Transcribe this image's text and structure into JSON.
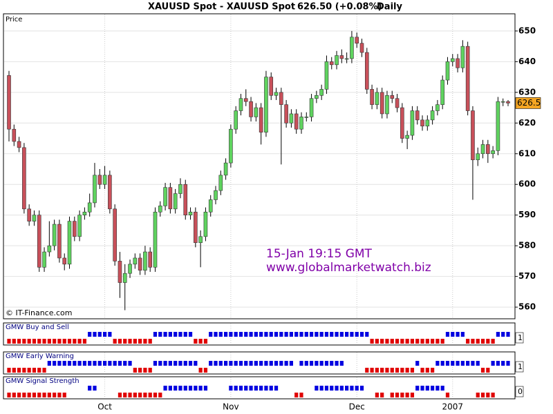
{
  "header": {
    "title": "XAUUSD Spot - XAUUSD Spot",
    "quote": "626.50 (+0.08%)",
    "period": "Daily"
  },
  "chart_data": [
    {
      "type": "candlestick",
      "label": "Price",
      "categories": [
        null,
        null,
        null,
        null,
        null,
        null,
        null,
        null,
        null,
        null,
        null,
        null,
        null,
        null,
        null,
        null,
        null,
        null,
        null,
        "Oct",
        null,
        null,
        null,
        null,
        null,
        null,
        null,
        null,
        null,
        null,
        null,
        null,
        null,
        null,
        null,
        null,
        null,
        null,
        null,
        null,
        null,
        null,
        null,
        null,
        "Nov",
        null,
        null,
        null,
        null,
        null,
        null,
        null,
        null,
        null,
        null,
        null,
        null,
        null,
        null,
        null,
        null,
        null,
        null,
        null,
        null,
        null,
        null,
        null,
        null,
        "Dec",
        null,
        null,
        null,
        null,
        null,
        null,
        null,
        null,
        null,
        null,
        null,
        null,
        null,
        null,
        null,
        null,
        null,
        null,
        "2007",
        null,
        null,
        null,
        null,
        null,
        null,
        null,
        null,
        null,
        null,
        null
      ],
      "open": [
        635.5,
        618,
        614,
        612,
        592,
        588,
        590,
        573,
        578,
        580,
        587,
        576,
        574,
        588,
        583,
        590,
        591,
        594,
        603,
        600,
        603,
        592,
        575,
        568,
        571,
        574,
        576,
        572,
        578,
        573,
        591,
        593,
        599,
        592,
        597,
        600,
        590,
        591,
        581,
        583,
        591,
        595,
        598,
        603,
        607,
        618,
        624,
        628,
        627,
        622,
        625,
        617,
        635,
        629,
        630,
        626,
        620,
        623,
        618,
        622,
        622,
        628,
        629,
        631,
        640,
        639,
        642,
        641,
        641,
        648,
        646,
        643,
        631,
        626,
        630,
        623,
        629,
        628,
        625,
        615,
        616,
        624,
        621,
        619,
        621,
        624,
        626,
        634,
        640,
        641,
        638,
        645,
        624,
        608,
        610,
        613,
        610,
        611,
        627,
        627
      ],
      "high": [
        637,
        619.5,
        615.5,
        613.5,
        593.5,
        591.5,
        591.5,
        579.5,
        588,
        588.5,
        588.5,
        577.5,
        589.5,
        589.5,
        591.5,
        592.5,
        597,
        607,
        605,
        606,
        604.5,
        593.5,
        578,
        574,
        575.5,
        577.5,
        577.5,
        580,
        579.5,
        592.5,
        594.5,
        600.5,
        600.5,
        598.5,
        602,
        601.5,
        592.5,
        592.5,
        585,
        592.5,
        596.5,
        599.5,
        604.5,
        608.5,
        619.5,
        625.5,
        629.5,
        631,
        628.5,
        626.5,
        626.5,
        637,
        636.5,
        631.5,
        631.5,
        627.5,
        624.5,
        624.5,
        623.5,
        623.5,
        629.5,
        630.5,
        632.5,
        642,
        641.5,
        643.5,
        644,
        643,
        650,
        649.5,
        647.5,
        644.5,
        632.5,
        631.5,
        631.5,
        630.5,
        630.5,
        629.5,
        626.5,
        617.5,
        625.5,
        625.5,
        622.5,
        622.5,
        625.5,
        627.5,
        635.5,
        641.5,
        642.5,
        642.5,
        647,
        646.5,
        625.5,
        612,
        614.5,
        614.5,
        612.5,
        628.5,
        628,
        627.5
      ],
      "low": [
        614,
        612.5,
        610.5,
        590.5,
        586.5,
        586.5,
        571.5,
        571.5,
        576.5,
        578.5,
        574.5,
        572,
        572.5,
        581.5,
        581.5,
        588.5,
        589.5,
        592.5,
        598.5,
        598.5,
        590.5,
        573.5,
        563,
        559,
        569.5,
        572.5,
        570.5,
        570.5,
        571.5,
        571.5,
        589.5,
        591.5,
        590.5,
        590.5,
        595.5,
        588.5,
        588.5,
        579.5,
        573,
        581.5,
        589.5,
        593.5,
        596.5,
        601.5,
        605.5,
        616.5,
        622.5,
        625.5,
        620.5,
        620.5,
        613,
        615.5,
        627.5,
        627.5,
        606.5,
        618.5,
        618.5,
        616.5,
        616.5,
        620.5,
        620.5,
        626.5,
        627.5,
        629.5,
        637.5,
        637.5,
        639.5,
        639.5,
        639.5,
        644.5,
        641.5,
        629.5,
        624.5,
        624.5,
        621.5,
        621.5,
        626.5,
        623.5,
        613.5,
        611.5,
        614.5,
        619.5,
        617.5,
        617.5,
        619.5,
        622.5,
        624.5,
        632.5,
        638.5,
        636.5,
        636.5,
        622.5,
        595,
        606,
        608.5,
        607,
        608.5,
        609.5,
        625.5,
        625.5
      ],
      "close": [
        618,
        614,
        612,
        592,
        588,
        590,
        573,
        578,
        580,
        587,
        576,
        574,
        588,
        583,
        590,
        591,
        594,
        603,
        600,
        603,
        592,
        575,
        568,
        571,
        574,
        576,
        572,
        578,
        573,
        591,
        593,
        599,
        592,
        597,
        600,
        590,
        591,
        581,
        583,
        591,
        595,
        598,
        603,
        607,
        618,
        624,
        628,
        627,
        622,
        625,
        617,
        635,
        629,
        630,
        626,
        620,
        623,
        618,
        622,
        622,
        628,
        629,
        631,
        640,
        639,
        642,
        641,
        641,
        648,
        646,
        643,
        631,
        626,
        630,
        623,
        629,
        628,
        625,
        615,
        616,
        624,
        621,
        619,
        621,
        624,
        626,
        634,
        640,
        641,
        638,
        645,
        624,
        608,
        610,
        613,
        610,
        611,
        627,
        627,
        626.5
      ],
      "up_color": "#5fd35f",
      "down_color": "#c8505a",
      "last_price": 626.5,
      "last_color": "#f5a623",
      "ylim": [
        556.2,
        655.6
      ],
      "yticks": [
        560,
        570,
        580,
        590,
        600,
        610,
        620,
        630,
        640,
        650
      ],
      "grid": true,
      "annotations": [
        "15-Jan 19:15 GMT",
        "www.globalmarketwatch.biz"
      ],
      "annotation_color": "#8000a8",
      "credit": "© IT-Finance.com"
    },
    {
      "type": "signal",
      "title": "GMW Buy and Sell",
      "last": 1,
      "up_color": "#0000e0",
      "down_color": "#e00000",
      "values": [
        -1,
        -1,
        -1,
        -1,
        -1,
        -1,
        -1,
        -1,
        -1,
        -1,
        -1,
        -1,
        -1,
        -1,
        -1,
        -1,
        1,
        1,
        1,
        1,
        1,
        -1,
        -1,
        -1,
        -1,
        -1,
        -1,
        -1,
        -1,
        1,
        1,
        1,
        1,
        1,
        1,
        1,
        1,
        -1,
        -1,
        -1,
        1,
        1,
        1,
        1,
        1,
        1,
        1,
        1,
        1,
        1,
        1,
        1,
        1,
        1,
        1,
        1,
        1,
        1,
        1,
        1,
        1,
        1,
        1,
        1,
        1,
        1,
        1,
        1,
        1,
        1,
        1,
        1,
        -1,
        -1,
        -1,
        -1,
        -1,
        -1,
        -1,
        -1,
        -1,
        -1,
        -1,
        -1,
        -1,
        -1,
        -1,
        1,
        1,
        1,
        1,
        -1,
        -1,
        -1,
        -1,
        -1,
        -1,
        1,
        1,
        1
      ]
    },
    {
      "type": "signal",
      "title": "GMW Early Warning",
      "last": 1,
      "up_color": "#0000e0",
      "down_color": "#e00000",
      "values": [
        -1,
        -1,
        -1,
        -1,
        -1,
        -1,
        -1,
        -1,
        1,
        1,
        1,
        1,
        1,
        1,
        1,
        1,
        1,
        1,
        1,
        1,
        1,
        1,
        1,
        1,
        1,
        -1,
        -1,
        -1,
        -1,
        1,
        1,
        1,
        1,
        1,
        1,
        1,
        1,
        1,
        -1,
        -1,
        1,
        1,
        1,
        1,
        1,
        1,
        1,
        1,
        1,
        1,
        1,
        1,
        1,
        1,
        1,
        1,
        1,
        0,
        1,
        1,
        1,
        1,
        1,
        1,
        1,
        1,
        1,
        0,
        0,
        0,
        0,
        -1,
        -1,
        -1,
        -1,
        -1,
        -1,
        -1,
        -1,
        -1,
        -1,
        1,
        -1,
        -1,
        -1,
        1,
        1,
        1,
        1,
        1,
        1,
        1,
        1,
        1,
        -1,
        -1,
        1,
        1,
        1,
        1
      ]
    },
    {
      "type": "signal",
      "title": "GMW Signal Strength",
      "last": 0,
      "up_color": "#0000e0",
      "down_color": "#e00000",
      "values": [
        -1,
        -1,
        -1,
        -1,
        -1,
        -1,
        -1,
        -1,
        -1,
        -1,
        -1,
        -1,
        0,
        0,
        0,
        0,
        1,
        1,
        0,
        0,
        0,
        0,
        -1,
        -1,
        -1,
        -1,
        -1,
        -1,
        -1,
        -1,
        -1,
        1,
        1,
        1,
        1,
        1,
        1,
        1,
        1,
        1,
        0,
        0,
        0,
        0,
        1,
        1,
        1,
        1,
        1,
        1,
        1,
        1,
        1,
        1,
        0,
        0,
        0,
        -1,
        -1,
        0,
        0,
        1,
        1,
        1,
        1,
        1,
        1,
        1,
        1,
        1,
        1,
        0,
        0,
        -1,
        -1,
        0,
        -1,
        -1,
        -1,
        -1,
        -1,
        1,
        1,
        1,
        1,
        1,
        1,
        -1,
        0,
        0,
        0,
        0,
        0,
        -1,
        -1,
        -1,
        -1,
        0,
        0,
        0
      ]
    }
  ]
}
